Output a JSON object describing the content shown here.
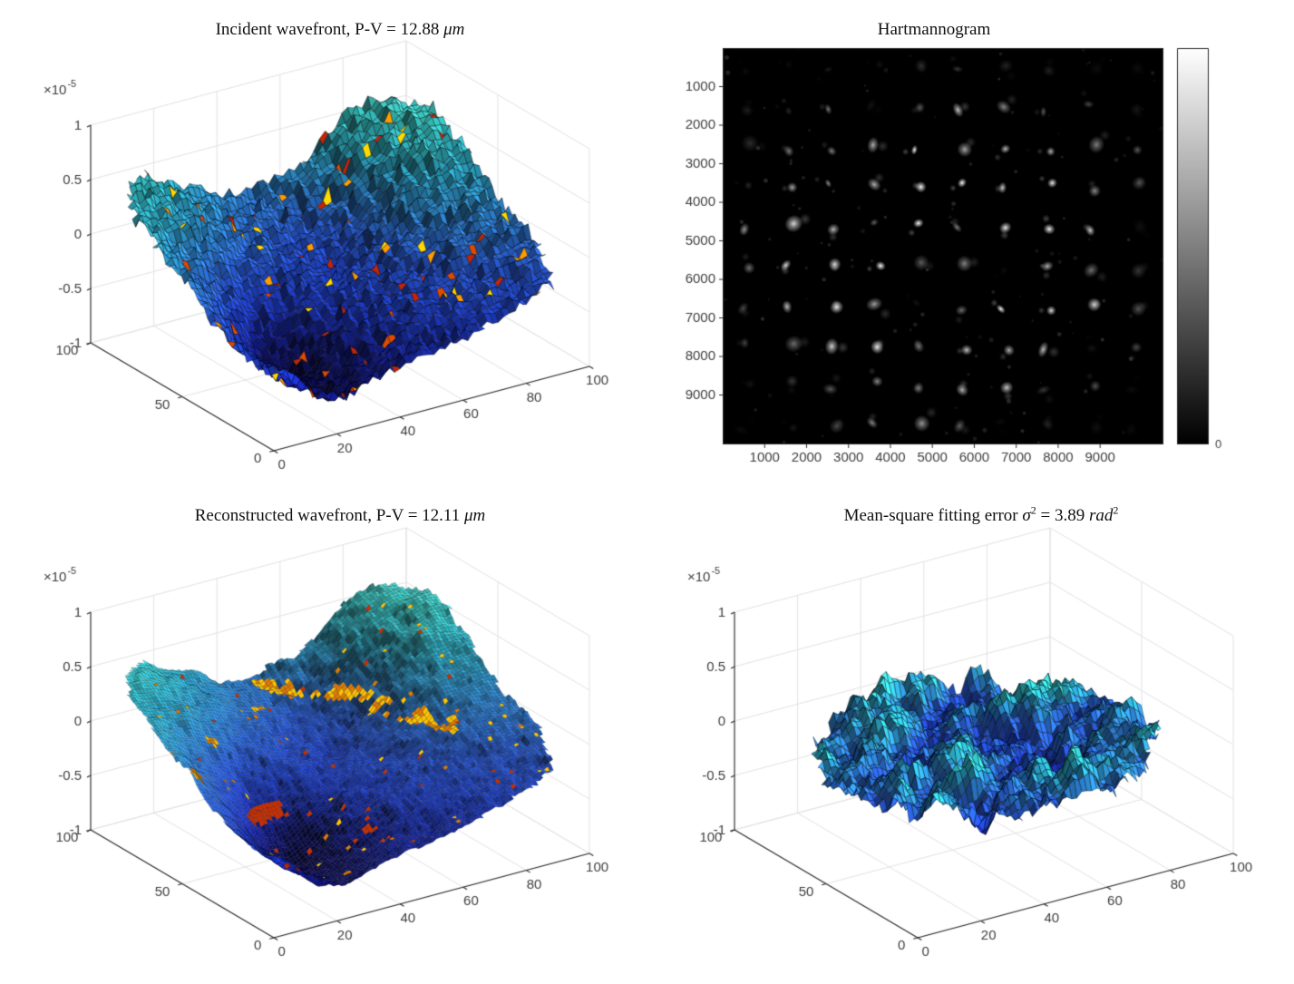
{
  "figure": {
    "background": "#ffffff",
    "text_color": "#3e3e3e",
    "axis_color": "#2a2a2a",
    "grid_color": "#e3e3e3",
    "title_color": "#111111"
  },
  "chart_data": [
    {
      "id": "incident_wavefront",
      "type": "surface",
      "position": "top-left",
      "title": "Incident wavefront, P-V = 12.88 μm",
      "title_segments": [
        {
          "t": "Incident wavefront, P-V = 12.88 "
        },
        {
          "t": "μm",
          "i": true
        }
      ],
      "x_ticks": [
        0,
        20,
        40,
        60,
        80,
        100
      ],
      "y_ticks": [
        0,
        50,
        100
      ],
      "z_ticks": [
        -1,
        -0.5,
        0,
        0.5,
        1
      ],
      "xlim": [
        0,
        100
      ],
      "ylim": [
        0,
        100
      ],
      "zlim": [
        -1e-05,
        1e-05
      ],
      "z_scale": {
        "mantissa": "×10",
        "exponent": "-5"
      },
      "grid": true,
      "surface": {
        "style": "jagged-mesh",
        "mesh_cells": 56,
        "seed": 11,
        "jitter": 0.055,
        "speckle_probability": 0.035,
        "speckle_colors": [
          "#ff9d00",
          "#e04a00",
          "#c3250a",
          "#ffd900"
        ],
        "peak_to_valley_um": 12.88,
        "shape": "tilted rough sheet, cyan high region along back, deep dark-blue minimum at front-left near -1e-5, central saddle dip"
      }
    },
    {
      "id": "hartmannogram",
      "type": "heatmap",
      "position": "top-right",
      "title": "Hartmannogram",
      "title_segments": [
        {
          "t": "Hartmannogram"
        }
      ],
      "x_ticks": [
        1000,
        2000,
        3000,
        4000,
        5000,
        6000,
        7000,
        8000,
        9000
      ],
      "y_ticks": [
        1000,
        2000,
        3000,
        4000,
        5000,
        6000,
        7000,
        8000,
        9000
      ],
      "xlim": [
        0,
        10510
      ],
      "ylim": [
        0,
        10280
      ],
      "background": "#000000",
      "spots": {
        "rows": 10,
        "cols": 10,
        "pitch": 1030,
        "first_col": 560,
        "first_row": 520,
        "seed": 7,
        "description": "regular grid of bright focal spots on black, brightest in central rows, dimmer toward corners and top edge"
      },
      "colorbar": {
        "bottom_label": "0",
        "top_color": "#ffffff",
        "bottom_color": "#000000"
      }
    },
    {
      "id": "reconstructed_wavefront",
      "type": "surface",
      "position": "bottom-left",
      "title": "Reconstructed wavefront, P-V = 12.11 μm",
      "title_segments": [
        {
          "t": "Reconstructed wavefront, P-V = 12.11 "
        },
        {
          "t": "μm",
          "i": true
        }
      ],
      "x_ticks": [
        0,
        20,
        40,
        60,
        80,
        100
      ],
      "y_ticks": [
        0,
        50,
        100
      ],
      "z_ticks": [
        -1,
        -0.5,
        0,
        0.5,
        1
      ],
      "xlim": [
        0,
        100
      ],
      "ylim": [
        0,
        100
      ],
      "zlim": [
        -1e-05,
        1e-05
      ],
      "z_scale": {
        "mantissa": "×10",
        "exponent": "-5"
      },
      "grid": true,
      "surface": {
        "style": "smooth-mesh",
        "mesh_cells": 88,
        "seed": 11,
        "jitter": 0.01,
        "speckle_probability": 0.012,
        "speckle_colors": [
          "#e07b00",
          "#ffc400",
          "#cc2e00"
        ],
        "peak_to_valley_um": 12.11,
        "shape": "same saddle shape as incident wavefront but smooth, with orange/red patch bands along mid-level contours"
      }
    },
    {
      "id": "fitting_error",
      "type": "surface",
      "position": "bottom-right",
      "title": "Mean-square fitting error σ² = 3.89 rad²",
      "title_segments": [
        {
          "t": "Mean-square fitting error "
        },
        {
          "t": "σ",
          "i": true
        },
        {
          "t": "2",
          "sup": true
        },
        {
          "t": " = 3.89 "
        },
        {
          "t": "rad",
          "i": true
        },
        {
          "t": "2",
          "sup": true
        }
      ],
      "x_ticks": [
        0,
        20,
        40,
        60,
        80,
        100
      ],
      "y_ticks": [
        0,
        50,
        100
      ],
      "z_ticks": [
        -1,
        -0.5,
        0,
        0.5,
        1
      ],
      "xlim": [
        0,
        100
      ],
      "ylim": [
        0,
        100
      ],
      "zlim": [
        -1e-05,
        1e-05
      ],
      "z_scale": {
        "mantissa": "×10",
        "exponent": "-5"
      },
      "grid": true,
      "surface": {
        "style": "noise-pancake",
        "mesh_cells": 64,
        "seed": 29,
        "jitter": 0.05,
        "speckle_probability": 0,
        "speckle_colors": [],
        "mean_square_error_rad2": 3.89,
        "shape": "flat jagged elliptical disc of cyan/blue noise centered near z = 0, amplitude about ±0.3e-5"
      }
    }
  ],
  "colormap_stops": [
    [
      0.0,
      "#060419"
    ],
    [
      0.1,
      "#0c0b50"
    ],
    [
      0.22,
      "#15209f"
    ],
    [
      0.34,
      "#1f41d6"
    ],
    [
      0.45,
      "#2b63e6"
    ],
    [
      0.57,
      "#2f8fdf"
    ],
    [
      0.7,
      "#30bcd9"
    ],
    [
      0.83,
      "#3ee2dc"
    ],
    [
      1.0,
      "#8cf8ea"
    ]
  ]
}
